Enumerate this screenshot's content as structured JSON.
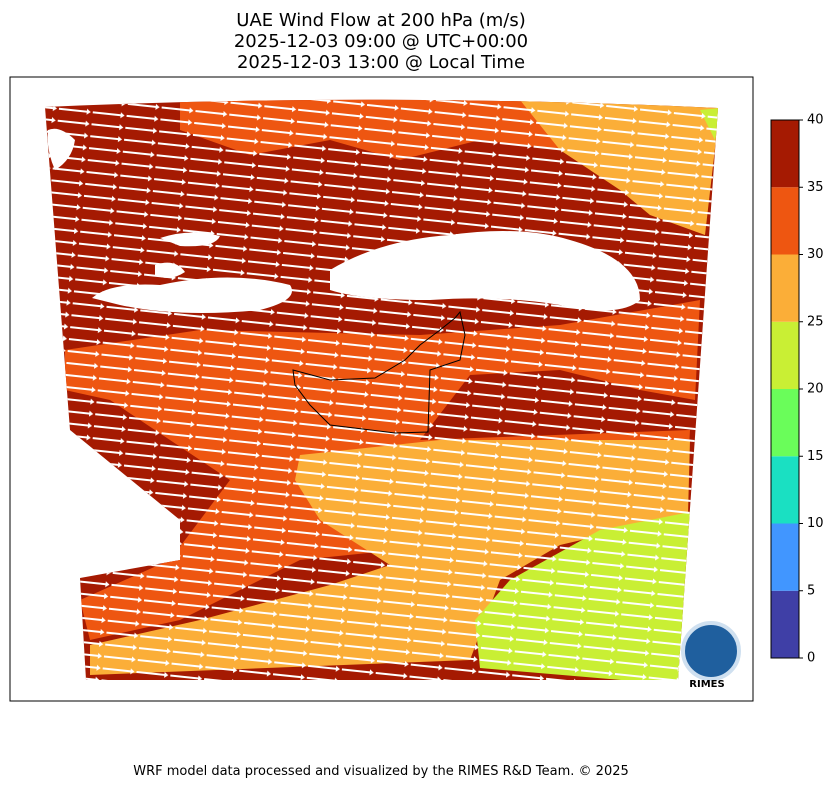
{
  "header": {
    "title_lines": [
      "UAE Wind Flow at 200 hPa (m/s)",
      "2025-12-03 09:00 @ UTC+00:00",
      "2025-12-03 13:00 @ Local Time"
    ]
  },
  "colorbar": {
    "ticks": [
      0,
      5,
      10,
      15,
      20,
      25,
      30,
      35,
      40
    ],
    "lim": [
      0,
      40
    ],
    "colors": [
      "#3f3fa6",
      "#4196ff",
      "#1ae0c2",
      "#6afd5a",
      "#c9ef34",
      "#fbae38",
      "#ee5611",
      "#a51a02"
    ]
  },
  "logo": {
    "text": "RIMES"
  },
  "footer": {
    "text": "WRF model data processed and visualized by the RIMES R&D Team. © 2025"
  }
}
